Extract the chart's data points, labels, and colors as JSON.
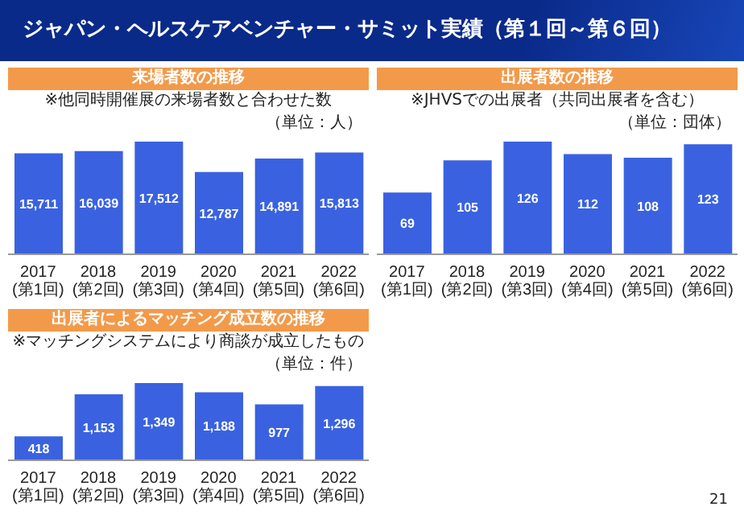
{
  "chart_data": [
    {
      "type": "bar",
      "title": "来場者数の推移",
      "subtitle": "※他同時開催展の来場者数と合わせた数",
      "ylabel": "（単位：人）",
      "categories": [
        "2017\n(第1回)",
        "2018\n(第2回)",
        "2019\n(第3回)",
        "2020\n(第4回)",
        "2021\n(第5回)",
        "2022\n(第6回)"
      ],
      "values": [
        15711,
        16039,
        17512,
        12787,
        14891,
        15813
      ],
      "color": "#3a62e0",
      "value_labels": [
        "15,711",
        "16,039",
        "17,512",
        "12,787",
        "14,891",
        "15,813"
      ],
      "annotations": [
        "ジャパン・ヘルスケアベンチャー・サミット実績（第１回～第６回）",
        "21"
      ]
    },
    {
      "type": "bar",
      "title": "出展者数の推移",
      "subtitle": "※JHVSでの出展者（共同出展者を含む）",
      "ylabel": "（単位：団体）",
      "categories": [
        "2017\n(第1回)",
        "2018\n(第2回)",
        "2019\n(第3回)",
        "2020\n(第4回)",
        "2021\n(第5回)",
        "2022\n(第6回)"
      ],
      "values": [
        69,
        105,
        126,
        112,
        108,
        123
      ],
      "color": "#3a62e0",
      "data_labels": true
    },
    {
      "type": "bar",
      "title": "出展者によるマッチング成立数の推移",
      "subtitle": "※マッチングシステムにより商談が成立したもの",
      "ylabel": "（単位：件）",
      "categories": [
        "2017\n(第1回)",
        "2018\n(第2回)",
        "2019\n(第3回)",
        "2020\n(第4回)",
        "2021\n(第5回)",
        "2022\n(第6回)"
      ],
      "values": [
        418,
        1153,
        1349,
        1188,
        977,
        1296
      ],
      "color": "#3a62e0",
      "value_labels": [
        "418",
        "1,153",
        "1,349",
        "1,188",
        "977",
        "1,296"
      ]
    }
  ]
}
